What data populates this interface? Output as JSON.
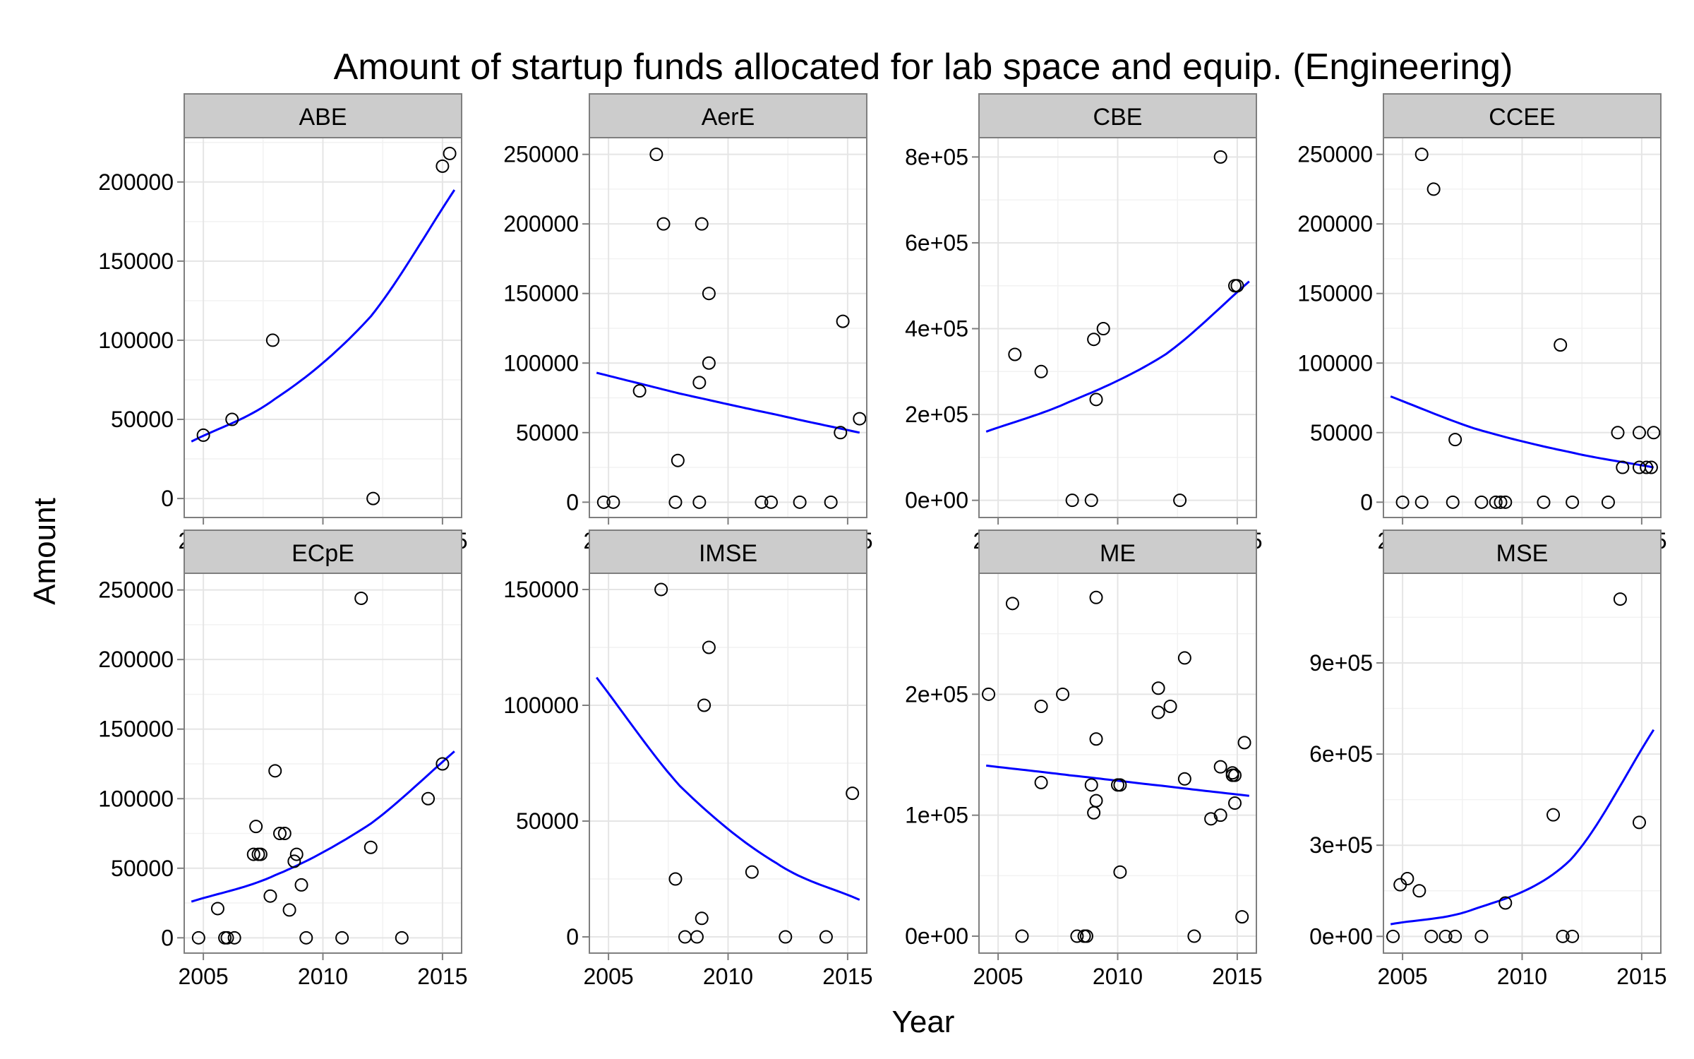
{
  "chart_data": {
    "type": "scatter",
    "title": "Amount of startup funds allocated for lab space and equip. (Engineering)",
    "xlabel": "Year",
    "ylabel": "Amount",
    "xlim": [
      2004.2,
      2015.8
    ],
    "x_ticks": [
      2005,
      2010,
      2015
    ],
    "grid": true,
    "trend_line_color": "#0000ff",
    "point_style": "open-circle",
    "panels": [
      {
        "name": "ABE",
        "ylim": [
          -12000,
          228000
        ],
        "y_ticks": [
          0,
          50000,
          100000,
          150000,
          200000
        ],
        "y_tick_labels": [
          "0",
          "50000",
          "100000",
          "150000",
          "200000"
        ],
        "points": [
          [
            2005,
            40000
          ],
          [
            2006.2,
            50000
          ],
          [
            2007.9,
            100000
          ],
          [
            2012.1,
            0
          ],
          [
            2015.0,
            210000
          ],
          [
            2015.3,
            218000
          ]
        ],
        "trend": [
          [
            2004.5,
            36000
          ],
          [
            2008,
            63000
          ],
          [
            2012,
            115000
          ],
          [
            2015.5,
            195000
          ]
        ]
      },
      {
        "name": "AerE",
        "ylim": [
          -11000,
          262000
        ],
        "y_ticks": [
          0,
          50000,
          100000,
          150000,
          200000,
          250000
        ],
        "y_tick_labels": [
          "0",
          "50000",
          "100000",
          "150000",
          "200000",
          "250000"
        ],
        "points": [
          [
            2004.8,
            0
          ],
          [
            2005.2,
            0
          ],
          [
            2006.3,
            80000
          ],
          [
            2007.0,
            250000
          ],
          [
            2007.3,
            200000
          ],
          [
            2007.8,
            0
          ],
          [
            2007.9,
            30000
          ],
          [
            2008.8,
            0
          ],
          [
            2008.8,
            86000
          ],
          [
            2008.9,
            200000
          ],
          [
            2009.2,
            150000
          ],
          [
            2009.2,
            100000
          ],
          [
            2011.4,
            0
          ],
          [
            2011.8,
            0
          ],
          [
            2013.0,
            0
          ],
          [
            2014.3,
            0
          ],
          [
            2014.7,
            50000
          ],
          [
            2014.8,
            130000
          ],
          [
            2015.5,
            60000
          ]
        ],
        "trend": [
          [
            2004.5,
            93000
          ],
          [
            2008,
            78000
          ],
          [
            2012,
            63000
          ],
          [
            2015.5,
            50000
          ]
        ]
      },
      {
        "name": "CBE",
        "ylim": [
          -40000,
          845000
        ],
        "y_ticks": [
          0,
          200000,
          400000,
          600000,
          800000
        ],
        "y_tick_labels": [
          "0e+00",
          "2e+05",
          "4e+05",
          "6e+05",
          "8e+05"
        ],
        "points": [
          [
            2005.7,
            340000
          ],
          [
            2006.8,
            300000
          ],
          [
            2008.1,
            0
          ],
          [
            2008.9,
            0
          ],
          [
            2009.0,
            375000
          ],
          [
            2009.1,
            235000
          ],
          [
            2009.4,
            400000
          ],
          [
            2012.6,
            0
          ],
          [
            2014.3,
            800000
          ],
          [
            2014.9,
            500000
          ],
          [
            2015.0,
            500000
          ]
        ],
        "trend": [
          [
            2004.5,
            160000
          ],
          [
            2008,
            230000
          ],
          [
            2012,
            340000
          ],
          [
            2015.5,
            510000
          ]
        ]
      },
      {
        "name": "CCEE",
        "ylim": [
          -11000,
          262000
        ],
        "y_ticks": [
          0,
          50000,
          100000,
          150000,
          200000,
          250000
        ],
        "y_tick_labels": [
          "0",
          "50000",
          "100000",
          "150000",
          "200000",
          "250000"
        ],
        "points": [
          [
            2005.0,
            0
          ],
          [
            2005.8,
            0
          ],
          [
            2005.8,
            250000
          ],
          [
            2006.3,
            225000
          ],
          [
            2007.1,
            0
          ],
          [
            2007.2,
            45000
          ],
          [
            2008.3,
            0
          ],
          [
            2008.9,
            0
          ],
          [
            2009.1,
            0
          ],
          [
            2009.3,
            0
          ],
          [
            2010.9,
            0
          ],
          [
            2011.6,
            113000
          ],
          [
            2012.1,
            0
          ],
          [
            2013.6,
            0
          ],
          [
            2014.0,
            50000
          ],
          [
            2014.2,
            25000
          ],
          [
            2014.9,
            50000
          ],
          [
            2014.9,
            25000
          ],
          [
            2015.2,
            25000
          ],
          [
            2015.4,
            25000
          ],
          [
            2015.5,
            50000
          ]
        ],
        "trend": [
          [
            2004.5,
            76000
          ],
          [
            2008,
            53000
          ],
          [
            2012,
            36000
          ],
          [
            2015.5,
            25000
          ]
        ]
      },
      {
        "name": "ECpE",
        "ylim": [
          -11000,
          262000
        ],
        "y_ticks": [
          0,
          50000,
          100000,
          150000,
          200000,
          250000
        ],
        "y_tick_labels": [
          "0",
          "50000",
          "100000",
          "150000",
          "200000",
          "250000"
        ],
        "points": [
          [
            2004.8,
            0
          ],
          [
            2005.6,
            21000
          ],
          [
            2005.9,
            0
          ],
          [
            2006.0,
            0
          ],
          [
            2006.3,
            0
          ],
          [
            2007.1,
            60000
          ],
          [
            2007.2,
            80000
          ],
          [
            2007.3,
            60000
          ],
          [
            2007.4,
            60000
          ],
          [
            2007.8,
            30000
          ],
          [
            2008.0,
            120000
          ],
          [
            2008.2,
            75000
          ],
          [
            2008.4,
            75000
          ],
          [
            2008.6,
            20000
          ],
          [
            2008.8,
            55000
          ],
          [
            2008.9,
            60000
          ],
          [
            2009.1,
            38000
          ],
          [
            2009.3,
            0
          ],
          [
            2010.8,
            0
          ],
          [
            2011.6,
            244000
          ],
          [
            2012.0,
            65000
          ],
          [
            2013.3,
            0
          ],
          [
            2014.4,
            100000
          ],
          [
            2015.0,
            125000
          ]
        ],
        "trend": [
          [
            2004.5,
            26000
          ],
          [
            2008,
            45000
          ],
          [
            2012,
            82000
          ],
          [
            2015.5,
            134000
          ]
        ]
      },
      {
        "name": "IMSE",
        "ylim": [
          -7000,
          157000
        ],
        "y_ticks": [
          0,
          50000,
          100000,
          150000
        ],
        "y_tick_labels": [
          "0",
          "50000",
          "100000",
          "150000"
        ],
        "points": [
          [
            2007.2,
            150000
          ],
          [
            2007.8,
            25000
          ],
          [
            2008.2,
            0
          ],
          [
            2008.7,
            0
          ],
          [
            2008.9,
            8000
          ],
          [
            2009.0,
            100000
          ],
          [
            2009.2,
            125000
          ],
          [
            2011.0,
            28000
          ],
          [
            2012.4,
            0
          ],
          [
            2014.1,
            0
          ],
          [
            2015.2,
            62000
          ]
        ],
        "trend": [
          [
            2004.5,
            112000
          ],
          [
            2008,
            65000
          ],
          [
            2012,
            32000
          ],
          [
            2015.5,
            16000
          ]
        ]
      },
      {
        "name": "ME",
        "ylim": [
          -14000,
          300000
        ],
        "y_ticks": [
          0,
          100000,
          200000
        ],
        "y_tick_labels": [
          "0e+00",
          "1e+05",
          "2e+05"
        ],
        "points": [
          [
            2004.6,
            200000
          ],
          [
            2005.6,
            275000
          ],
          [
            2006.0,
            0
          ],
          [
            2006.8,
            127000
          ],
          [
            2006.8,
            190000
          ],
          [
            2007.7,
            200000
          ],
          [
            2008.3,
            0
          ],
          [
            2008.6,
            0
          ],
          [
            2008.7,
            0
          ],
          [
            2008.9,
            125000
          ],
          [
            2009.0,
            102000
          ],
          [
            2009.1,
            112000
          ],
          [
            2009.1,
            163000
          ],
          [
            2009.1,
            280000
          ],
          [
            2010.0,
            125000
          ],
          [
            2010.1,
            125000
          ],
          [
            2010.1,
            53000
          ],
          [
            2011.7,
            185000
          ],
          [
            2011.7,
            205000
          ],
          [
            2012.2,
            190000
          ],
          [
            2012.8,
            230000
          ],
          [
            2012.8,
            130000
          ],
          [
            2013.2,
            0
          ],
          [
            2013.9,
            97000
          ],
          [
            2014.3,
            140000
          ],
          [
            2014.3,
            100000
          ],
          [
            2014.8,
            133000
          ],
          [
            2014.8,
            135000
          ],
          [
            2014.9,
            133000
          ],
          [
            2014.9,
            110000
          ],
          [
            2015.2,
            16000
          ],
          [
            2015.3,
            160000
          ]
        ],
        "trend": [
          [
            2004.5,
            141000
          ],
          [
            2008,
            133000
          ],
          [
            2012,
            124000
          ],
          [
            2015.5,
            116000
          ]
        ]
      },
      {
        "name": "MSE",
        "ylim": [
          -55000,
          1195000
        ],
        "y_ticks": [
          0,
          300000,
          600000,
          900000
        ],
        "y_tick_labels": [
          "0e+00",
          "3e+05",
          "6e+05",
          "9e+05"
        ],
        "points": [
          [
            2004.6,
            0
          ],
          [
            2004.9,
            170000
          ],
          [
            2005.2,
            190000
          ],
          [
            2005.7,
            150000
          ],
          [
            2006.2,
            0
          ],
          [
            2006.8,
            0
          ],
          [
            2007.2,
            0
          ],
          [
            2008.3,
            0
          ],
          [
            2009.3,
            110000
          ],
          [
            2011.3,
            400000
          ],
          [
            2011.7,
            0
          ],
          [
            2012.1,
            0
          ],
          [
            2014.1,
            1110000
          ],
          [
            2014.9,
            375000
          ]
        ],
        "trend": [
          [
            2004.5,
            40000
          ],
          [
            2008,
            90000
          ],
          [
            2012,
            250000
          ],
          [
            2015.5,
            680000
          ]
        ]
      }
    ]
  }
}
